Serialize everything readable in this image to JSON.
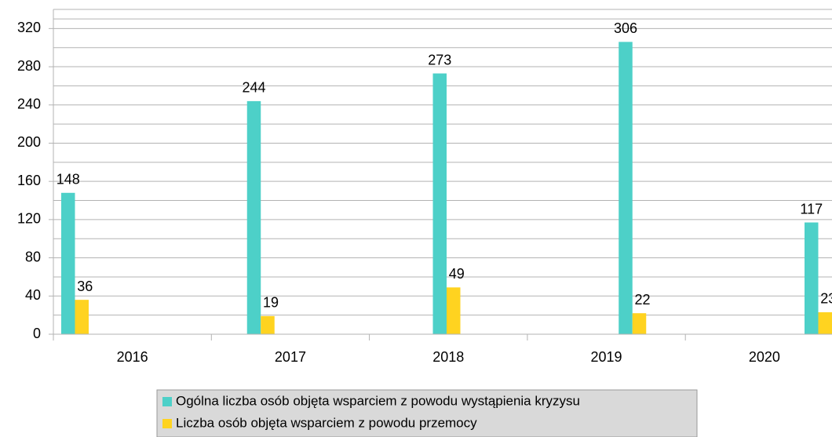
{
  "chart_data": {
    "type": "bar",
    "categories": [
      "2016",
      "2017",
      "2018",
      "2019",
      "2020"
    ],
    "series": [
      {
        "name": "Ogólna liczba osób objęta wsparciem z powodu wystąpienia kryzysu",
        "color": "#4dd0c8",
        "values": [
          148,
          244,
          273,
          306,
          117
        ]
      },
      {
        "name": "Liczba osób objęta wsparciem z powodu przemocy",
        "color": "#ffd320",
        "values": [
          36,
          19,
          49,
          22,
          23
        ]
      }
    ],
    "ylim": [
      0,
      340
    ],
    "yticks": [
      0,
      40,
      80,
      120,
      160,
      200,
      240,
      280,
      320
    ],
    "grid": true,
    "legend": "bottom"
  }
}
